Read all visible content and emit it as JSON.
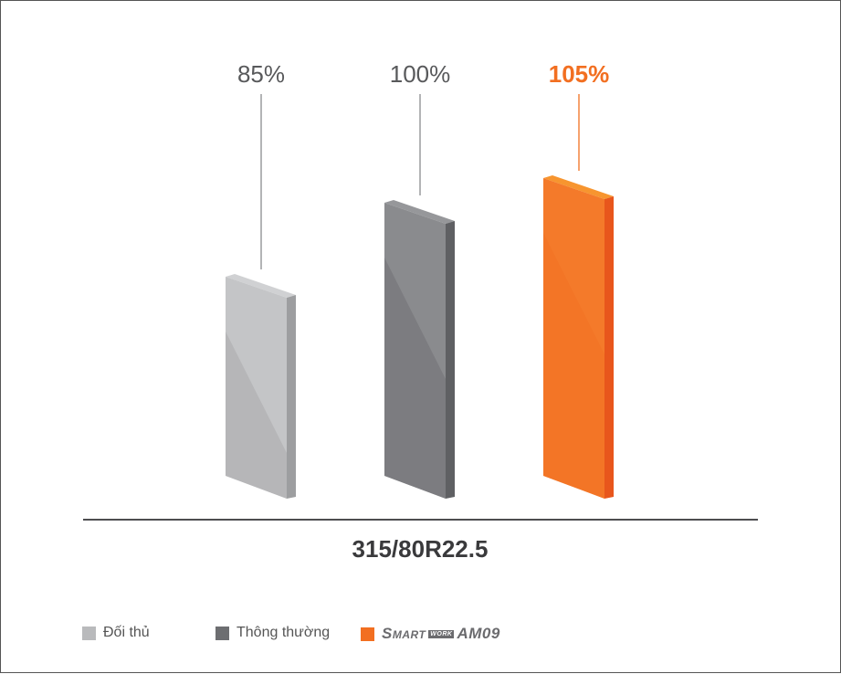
{
  "chart_data": {
    "type": "bar",
    "title": "",
    "xlabel": "315/80R22.5",
    "ylabel": "",
    "categories": [
      "Đối thủ",
      "Thông thường",
      "SMART WORK AM09"
    ],
    "values": [
      85,
      100,
      105
    ],
    "value_labels": [
      "85%",
      "100%",
      "105%"
    ],
    "unit": "%",
    "style": "3d-bars",
    "grid": false,
    "legend_placement": "bottom-left",
    "colors": [
      "#b9babc",
      "#808184",
      "#f26f21"
    ],
    "label_colors": [
      "#58595b",
      "#58595b",
      "#f26f21"
    ]
  },
  "legend": {
    "items": [
      {
        "label": "Đối thủ",
        "color": "#b9babc"
      },
      {
        "label": "Thông thường",
        "color": "#6d6e71"
      },
      {
        "label": "SMART WORK AM09",
        "logo_parts": [
          "Smart",
          "WORK",
          "AM09"
        ],
        "color": "#f26f21"
      }
    ]
  }
}
